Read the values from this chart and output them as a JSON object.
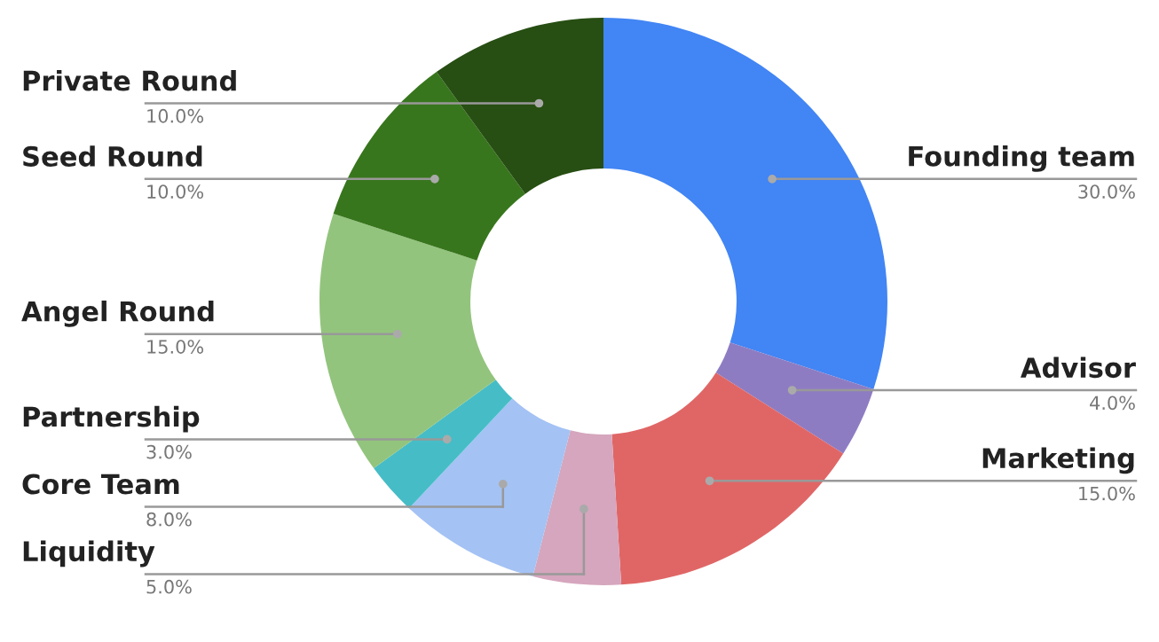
{
  "chart_data": {
    "type": "donut",
    "categories": [
      "Founding team",
      "Advisor",
      "Marketing",
      "Liquidity",
      "Core Team",
      "Partnership",
      "Angel Round",
      "Seed Round",
      "Private Round"
    ],
    "values": [
      30,
      4,
      15,
      5,
      8,
      3,
      15,
      10,
      10
    ],
    "colors": [
      "#4285f4",
      "#8e7cc3",
      "#e06666",
      "#d5a6bd",
      "#a4c2f4",
      "#46bdc6",
      "#93c47d",
      "#38761d",
      "#274e13"
    ],
    "value_labels": [
      "30.0%",
      "4.0%",
      "15.0%",
      "5.0%",
      "8.0%",
      "3.0%",
      "15.0%",
      "10.0%",
      "10.0%"
    ]
  }
}
